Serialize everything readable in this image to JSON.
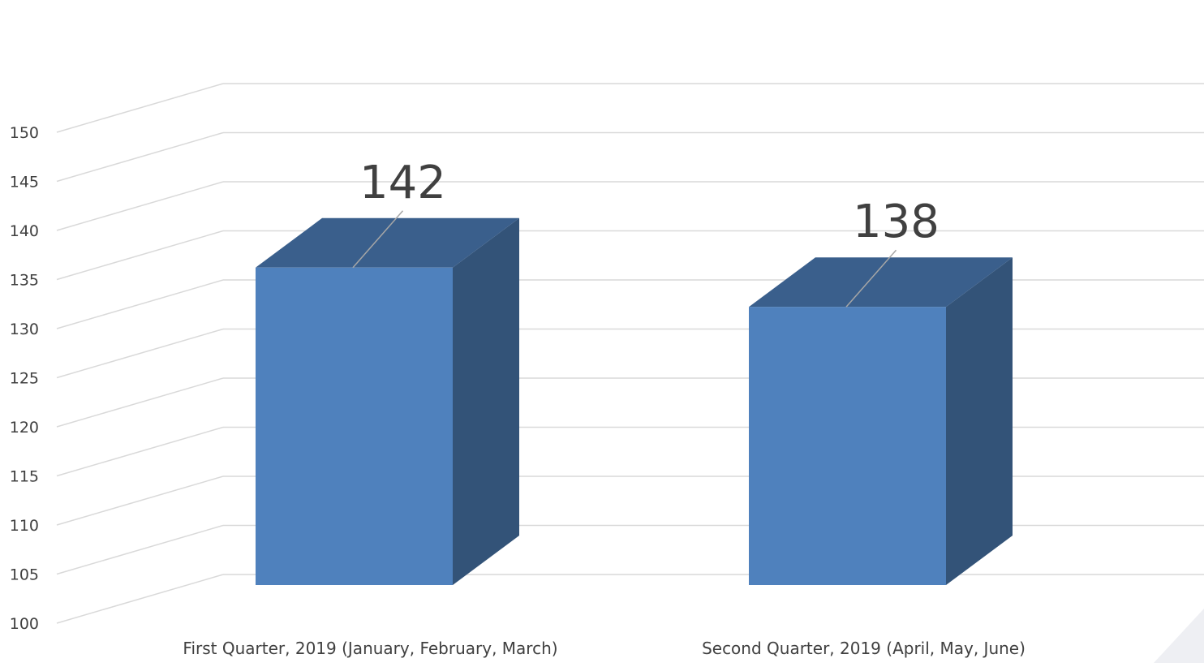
{
  "chart_data": {
    "type": "bar",
    "style": "3d-column",
    "categories": [
      "First Quarter, 2019 (January, February, March)",
      "Second Quarter, 2019 (April, May, June)"
    ],
    "values": [
      142,
      138
    ],
    "data_labels": [
      "142",
      "138"
    ],
    "y_tick_labels": [
      "100",
      "105",
      "110",
      "115",
      "120",
      "125",
      "130",
      "135",
      "140",
      "145",
      "150"
    ],
    "ylim": [
      100,
      150
    ],
    "grid": true,
    "colors": {
      "bar_front": "#4f81bd",
      "bar_top": "#3a5f8c",
      "bar_side": "#335378",
      "grid": "#d9d9d9",
      "text": "#404040"
    }
  }
}
